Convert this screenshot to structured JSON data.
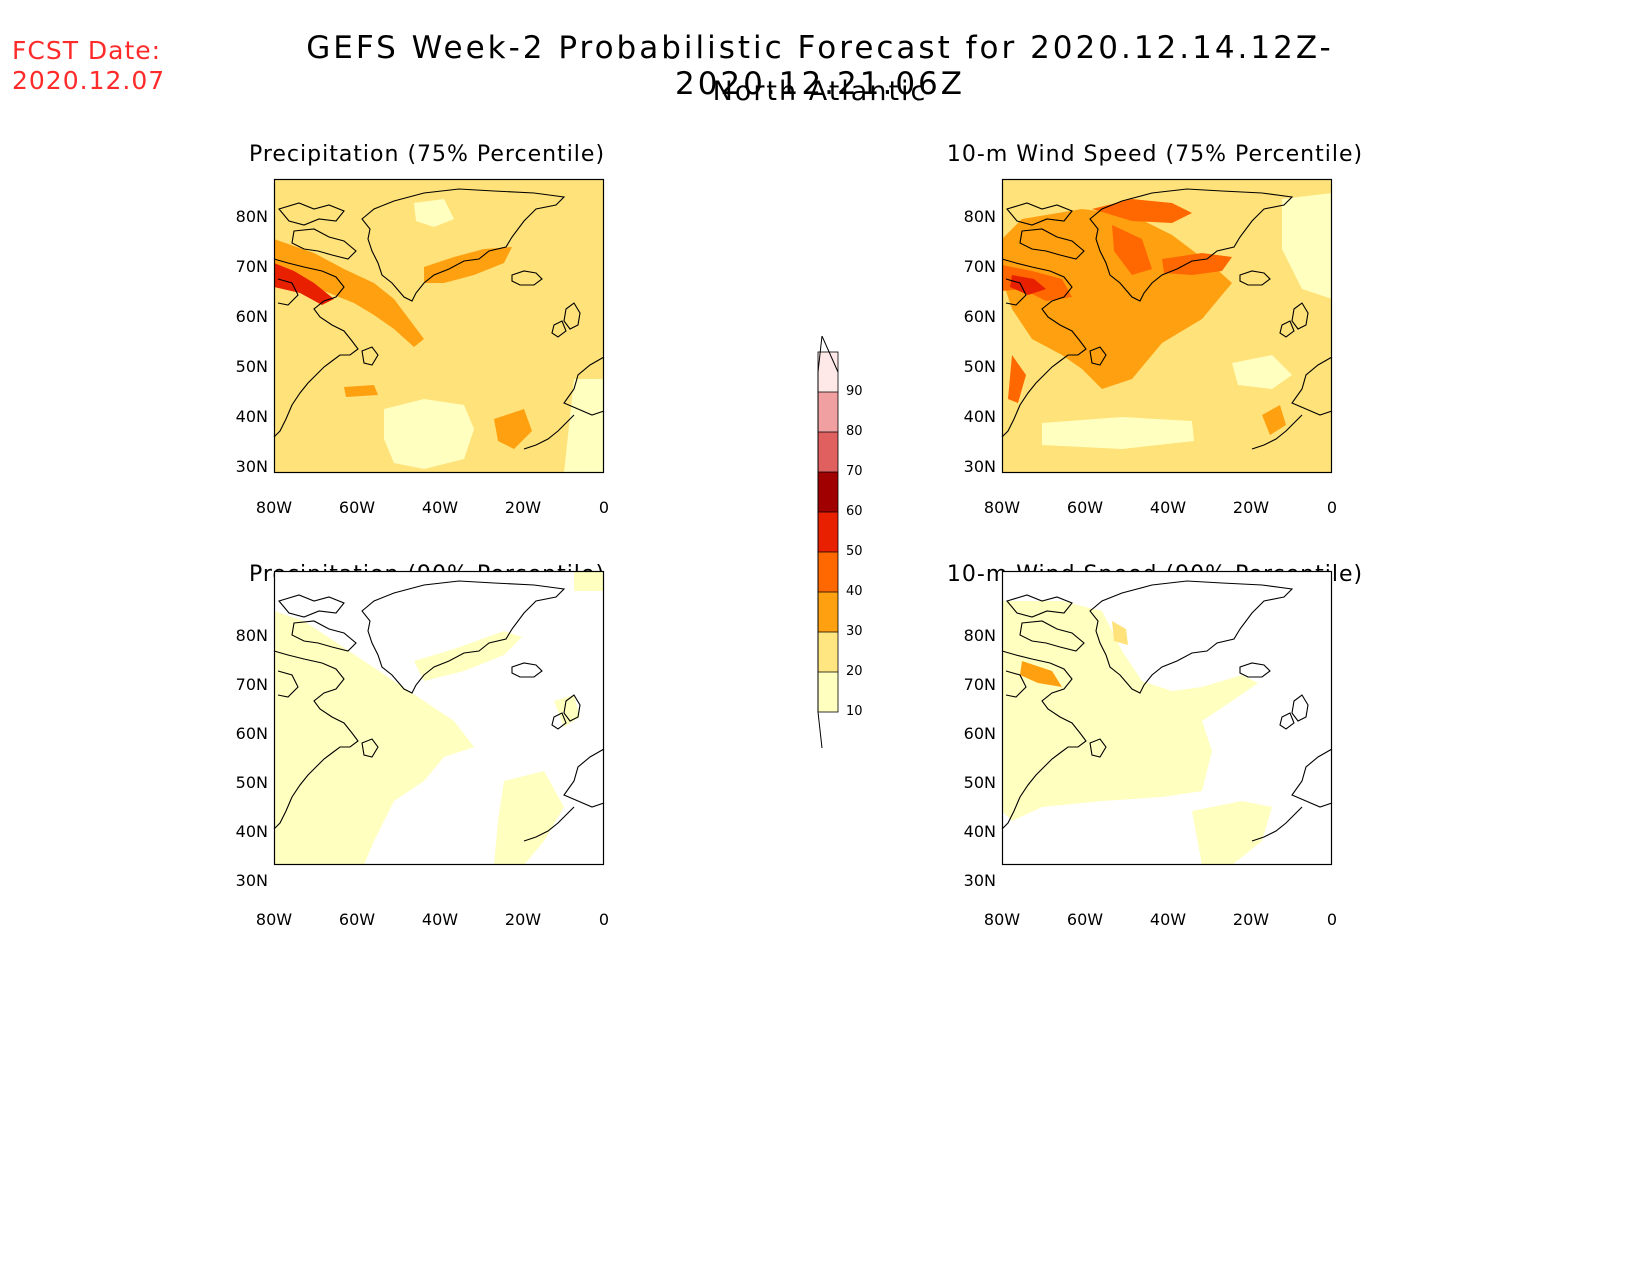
{
  "header": {
    "fcst_label": "FCST Date:",
    "fcst_date": "2020.12.07",
    "title": "GEFS Week-2 Probabilistic Forecast for 2020.12.14.12Z-2020.12.21.06Z",
    "region": "North Atlantic"
  },
  "panels": [
    {
      "title": "Precipitation (75% Percentile)"
    },
    {
      "title": "10-m Wind Speed (75% Percentile)"
    },
    {
      "title": "Precipitation (90% Percentile)"
    },
    {
      "title": "10-m Wind Speed (90% Percentile)"
    }
  ],
  "axes": {
    "lat_labels": [
      "80N",
      "70N",
      "60N",
      "50N",
      "40N",
      "30N"
    ],
    "lon_labels": [
      "80W",
      "60W",
      "40W",
      "20W",
      "0"
    ]
  },
  "colorbar": {
    "labels": [
      "10",
      "20",
      "30",
      "40",
      "50",
      "60",
      "70",
      "80",
      "90"
    ],
    "colors": [
      "#ffffc0",
      "#ffe680",
      "#ffa010",
      "#ff6800",
      "#e82000",
      "#a00000",
      "#e06060",
      "#f0a0a0",
      "#ffe8e8"
    ]
  },
  "palette": {
    "fcst_color": "#ff2a2a"
  }
}
